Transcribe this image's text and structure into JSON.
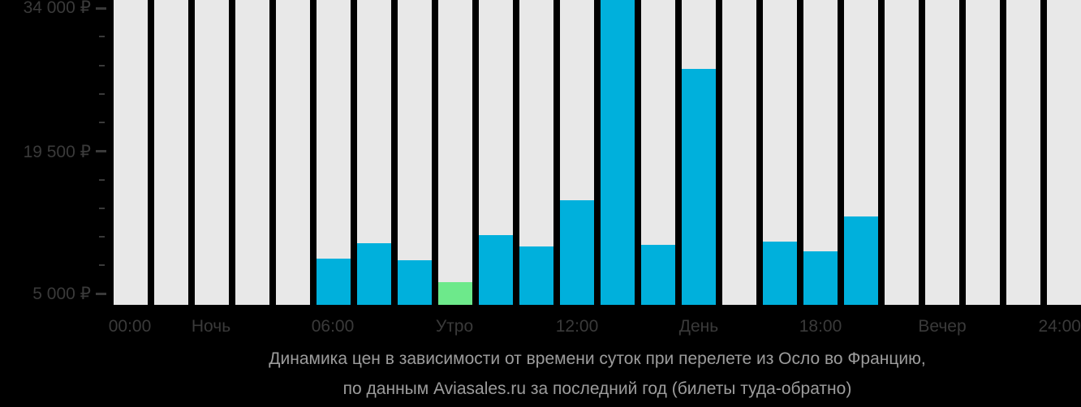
{
  "chart_data": {
    "type": "bar",
    "title": "Динамика цен в зависимости от времени суток при перелете из Осло во Францию,",
    "subtitle": "по данным Aviasales.ru за последний год (билеты туда-обратно)",
    "currency": "₽",
    "y_axis": {
      "tick_labels": [
        "34 000 ₽",
        "19 500 ₽",
        "5 000 ₽"
      ],
      "major_tick_values": [
        34000,
        19500,
        5000
      ],
      "minor_step": 2900,
      "min": 5000,
      "max": 34000,
      "grid": false
    },
    "x_labels": [
      "00:00",
      "Ночь",
      "06:00",
      "Утро",
      "12:00",
      "День",
      "18:00",
      "Вечер",
      "24:00"
    ],
    "categories_hours": [
      "00",
      "01",
      "02",
      "03",
      "04",
      "05",
      "06",
      "07",
      "08",
      "09",
      "10",
      "11",
      "12",
      "13",
      "14",
      "15",
      "16",
      "17",
      "18",
      "19",
      "20",
      "21",
      "22",
      "23"
    ],
    "values": [
      null,
      null,
      null,
      null,
      null,
      8600,
      10200,
      8400,
      6200,
      11000,
      9800,
      14500,
      35000,
      10000,
      27800,
      null,
      10300,
      9300,
      12900,
      null,
      null,
      null,
      null,
      null
    ],
    "min_price_bar_index": 8,
    "clipped_bar_index": 12,
    "legend_position": "none",
    "colors": {
      "background": "#000000",
      "bar": "#00b0dc",
      "min_bar": "#6de98b",
      "empty_bar": "#e8e8e8",
      "axis_text": "#3a3a3a",
      "caption_text": "#9c9c9c"
    }
  }
}
